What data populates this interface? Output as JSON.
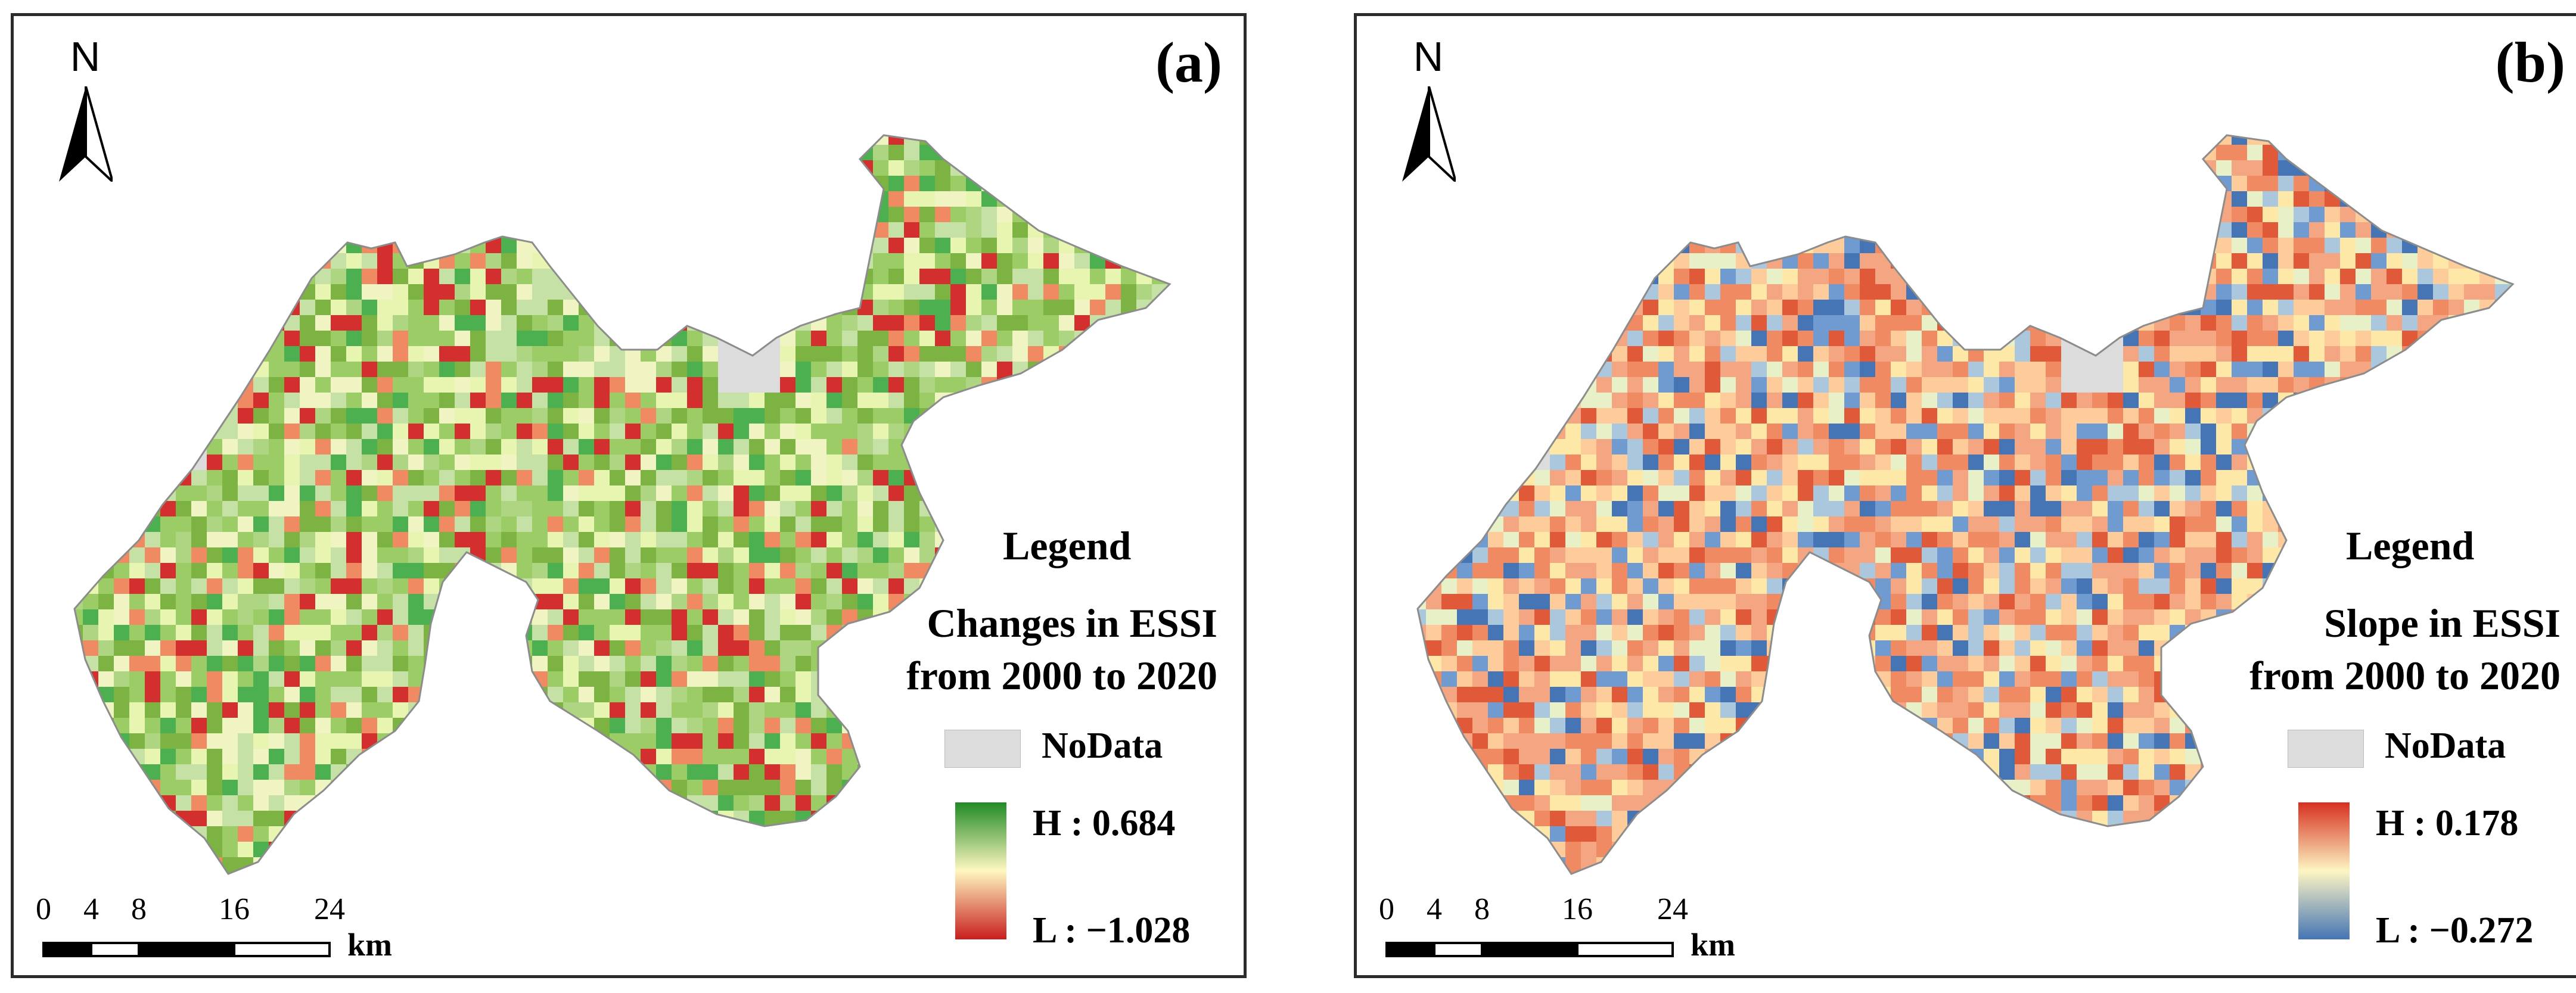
{
  "panels": [
    {
      "tag": "(a)",
      "north_label": "N",
      "legend": {
        "title": "Legend",
        "subtitle_line1": "Changes in ESSI",
        "subtitle_line2": "from 2000 to 2020",
        "nodata_label": "NoData",
        "high_label": "H : 0.684",
        "low_label": "L : −1.028",
        "ramp_colors": [
          "#1f8a25",
          "#fff7c0",
          "#c81e1e"
        ]
      },
      "palette": [
        "#9ccc65",
        "#7cb342",
        "#c5e1a5",
        "#f0f4c3",
        "#e8f5b0",
        "#d32f2f",
        "#ef8a62",
        "#4caf50",
        "#aed581"
      ],
      "weights": [
        18,
        15,
        14,
        11,
        10,
        9,
        8,
        8,
        7
      ]
    },
    {
      "tag": "(b)",
      "north_label": "N",
      "legend": {
        "title": "Legend",
        "subtitle_line1": "Slope in ESSI",
        "subtitle_line2": "from 2000 to 2020",
        "nodata_label": "NoData",
        "high_label": "H : 0.178",
        "low_label": "L : −0.272",
        "ramp_colors": [
          "#d7301f",
          "#fdf5c3",
          "#4575b4"
        ]
      },
      "palette": [
        "#f4a582",
        "#fdcc9a",
        "#ef8a62",
        "#fee8a8",
        "#e8f0c8",
        "#6f9bd1",
        "#4575b4",
        "#abc7dd",
        "#e05a3a"
      ],
      "weights": [
        19,
        15,
        16,
        11,
        8,
        8,
        7,
        7,
        9
      ]
    }
  ],
  "scale_bar": {
    "ticks": [
      "0",
      "4",
      "8",
      "16",
      "24"
    ],
    "tick_values": [
      0,
      4,
      8,
      16,
      24
    ],
    "unit": "km"
  },
  "colors": {
    "nodata": "#dcdcdc",
    "outline": "#8c8c8c",
    "frame": "#2b2b2b"
  }
}
